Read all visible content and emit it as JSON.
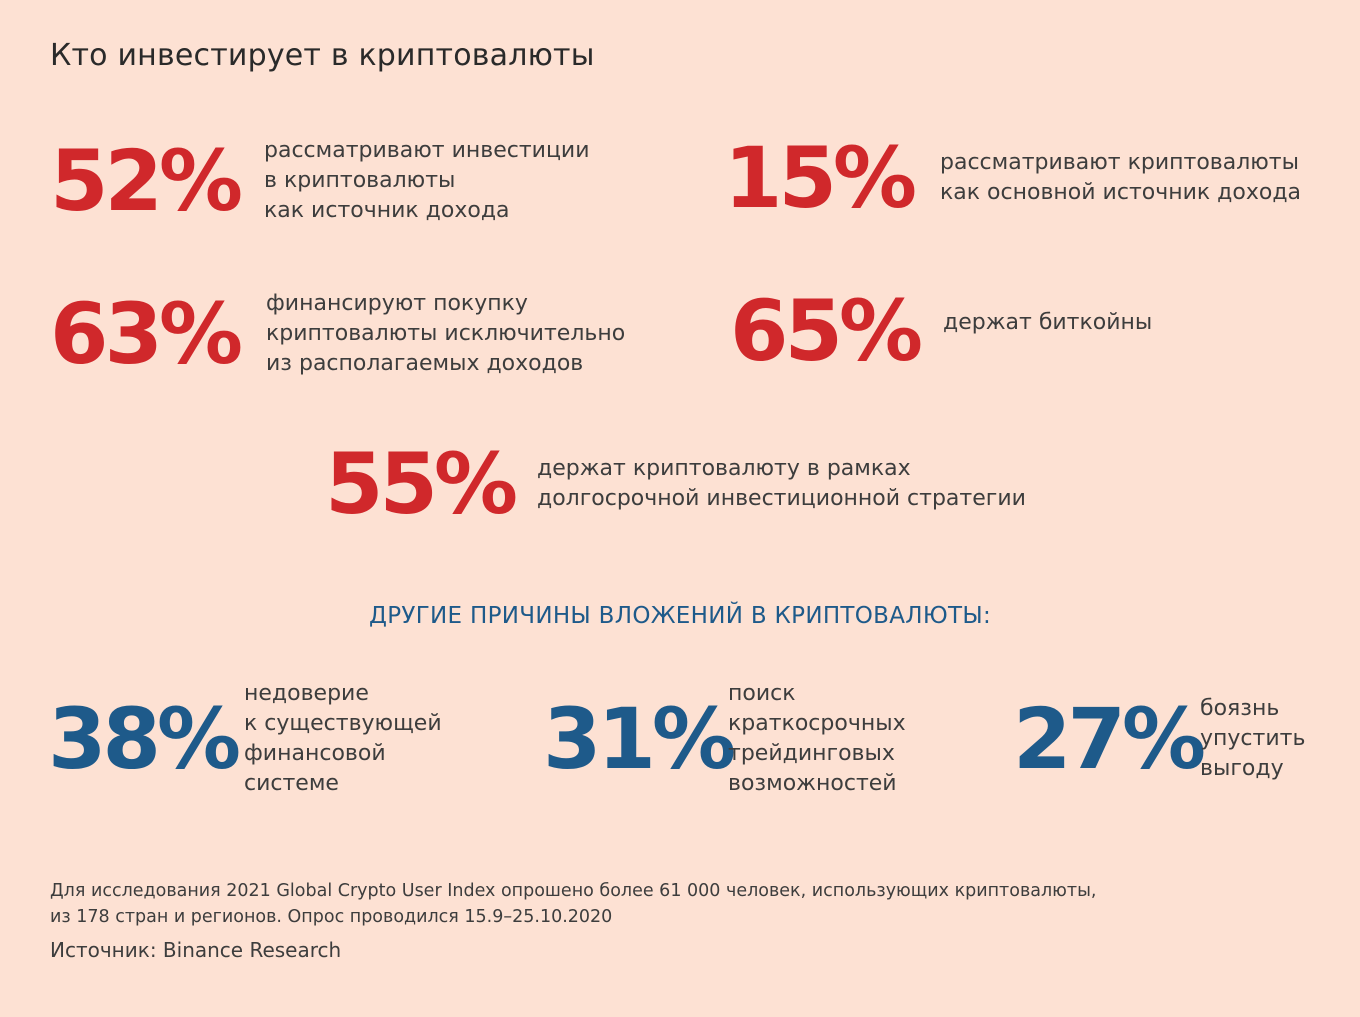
{
  "title": "Кто инвестирует в криптовалюты",
  "stats": [
    {
      "value": "52%",
      "text": "рассматривают инвестиции\nв криптовалюты\nкак источник дохода"
    },
    {
      "value": "15%",
      "text": "рассматривают криптовалюты\nкак основной источник дохода"
    },
    {
      "value": "63%",
      "text": "финансируют покупку\nкриптовалюты исключительно\nиз располагаемых доходов"
    },
    {
      "value": "65%",
      "text": "держат биткойны"
    },
    {
      "value": "55%",
      "text": "держат криптовалюту в рамках\nдолгосрочной инвестиционной стратегии"
    }
  ],
  "other_heading": "ДРУГИЕ ПРИЧИНЫ ВЛОЖЕНИЙ В КРИПТОВАЛЮТЫ:",
  "other_stats": [
    {
      "value": "38%",
      "text": "недоверие\nк существующей\nфинансовой\nсистеме"
    },
    {
      "value": "31%",
      "text": "поиск\nкраткосрочных\nтрейдинговых\nвозможностей"
    },
    {
      "value": "27%",
      "text": "боязнь\nупустить\nвыгоду"
    }
  ],
  "footnote": "Для исследования 2021 Global Crypto User Index опрошено более 61 000 человек, использующих криптовалюты,\nиз 178 стран и регионов. Опрос проводился 15.9–25.10.2020",
  "source": "Источник: Binance Research",
  "colors": {
    "background": "#fde1d3",
    "red": "#d0282b",
    "blue": "#1e5a8a"
  }
}
